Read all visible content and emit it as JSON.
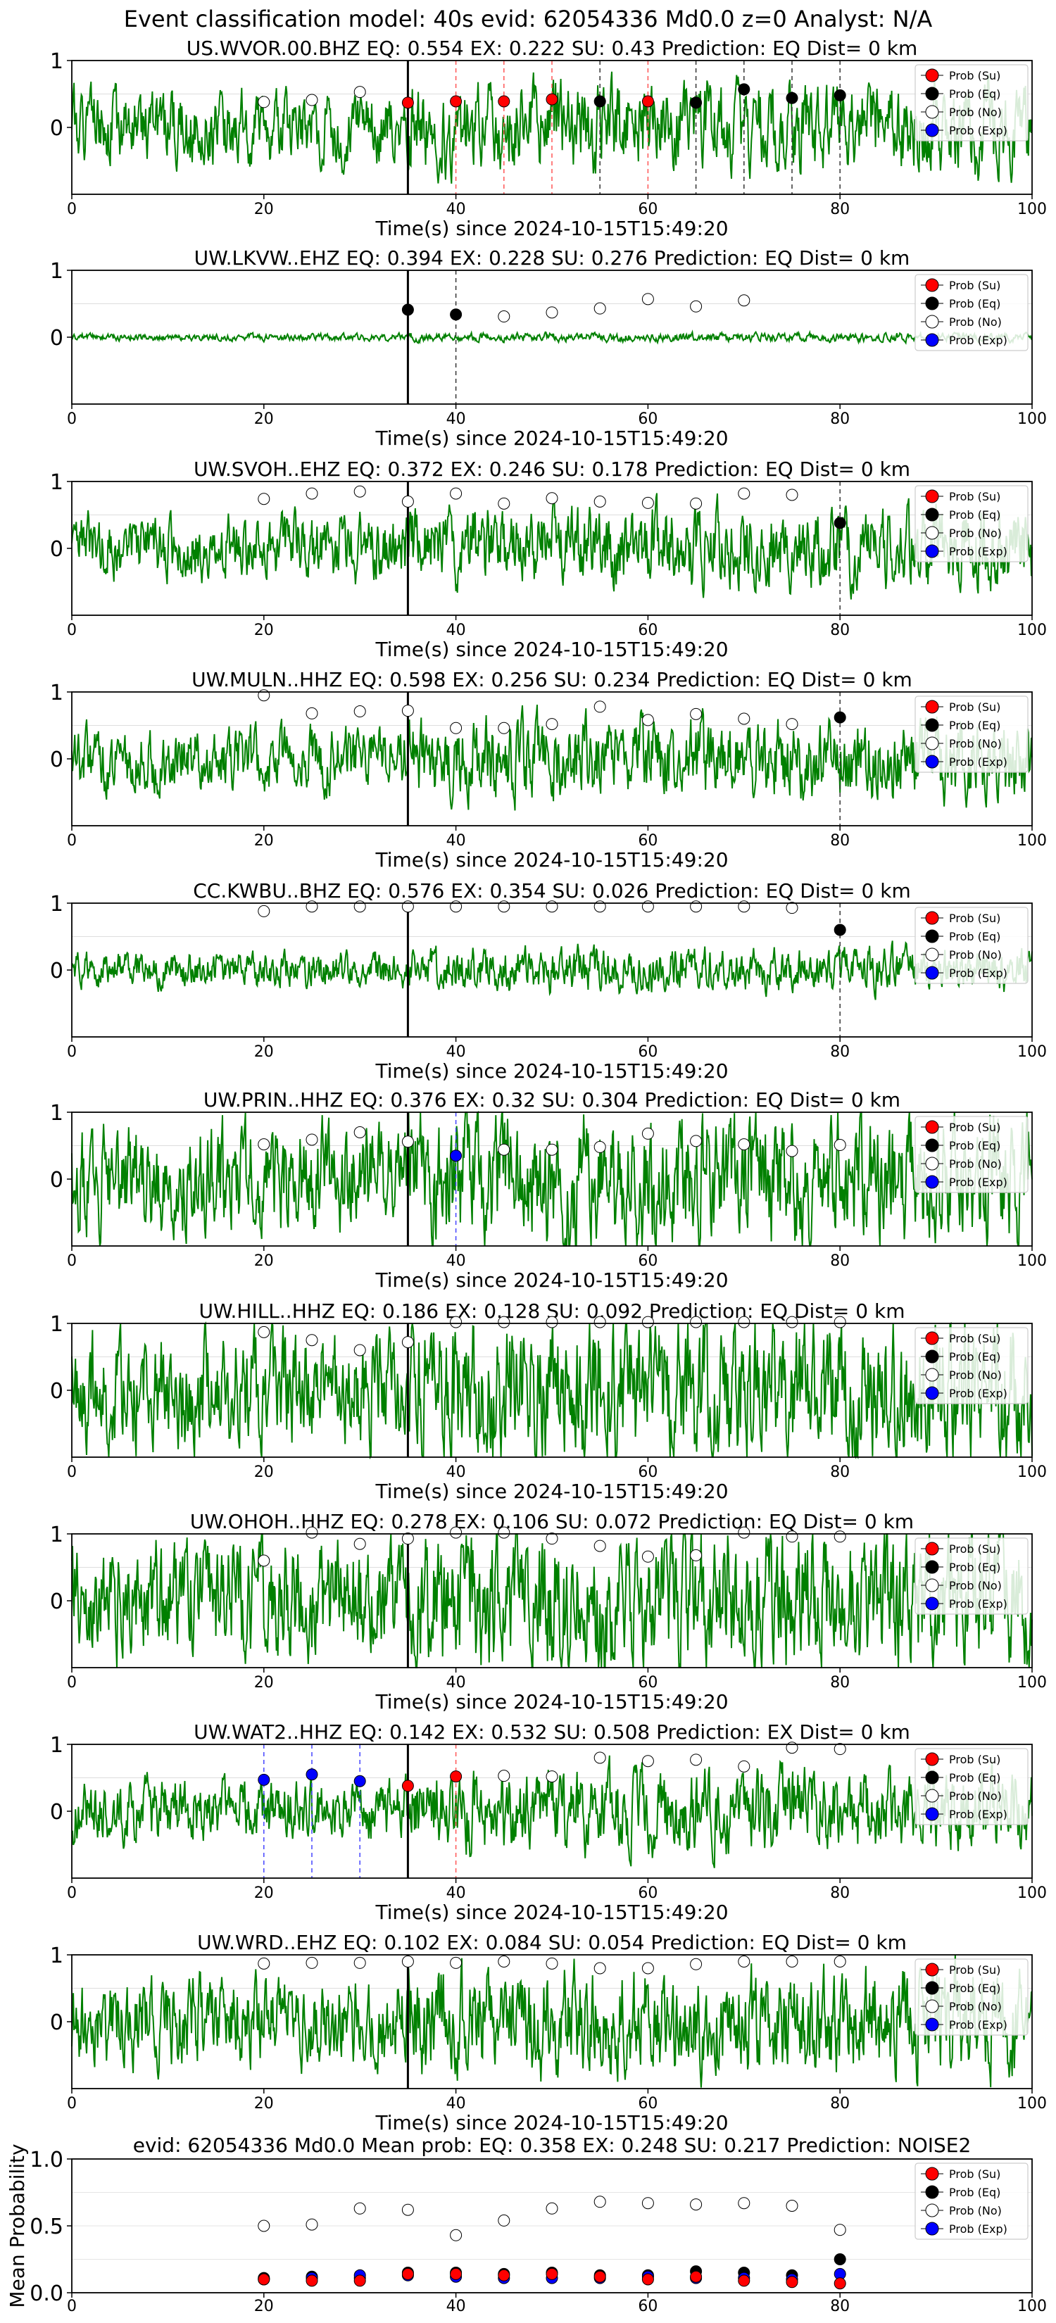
{
  "suptitle": "Event classification model: 40s evid: 62054336 Md0.0 z=0 Analyst: N/A",
  "colors": {
    "su": "#ff0000",
    "eq": "#000000",
    "no": "#ffffff",
    "exp": "#0000ff",
    "trace": "#008000"
  },
  "legend": {
    "su": "Prob (Su)",
    "eq": "Prob (Eq)",
    "no": "Prob (No)",
    "exp": "Prob (Exp)"
  },
  "xticks": [
    "0",
    "20",
    "40",
    "60",
    "80",
    "100"
  ],
  "xlabel": "Time(s) since 2024-10-15T15:49:20",
  "chart_data": [
    {
      "type": "scatter",
      "title": "US.WVOR.00.BHZ    EQ: 0.554  EX: 0.222  SU: 0.43   Prediction: EQ    Dist= 0 km",
      "xlabel": "Time(s) since 2024-10-15T15:49:20",
      "xlim": [
        0,
        100
      ],
      "ylim": [
        -1,
        1
      ],
      "yticks": [
        "0",
        "1"
      ],
      "amp": 0.5,
      "seed": 1,
      "p_line": 35,
      "points": [
        [
          20,
          0.38,
          "no"
        ],
        [
          25,
          0.41,
          "no"
        ],
        [
          30,
          0.53,
          "no"
        ],
        [
          35,
          0.37,
          "su"
        ],
        [
          40,
          0.39,
          "su"
        ],
        [
          45,
          0.39,
          "su"
        ],
        [
          50,
          0.42,
          "su"
        ],
        [
          55,
          0.39,
          "eq"
        ],
        [
          60,
          0.39,
          "su"
        ],
        [
          65,
          0.37,
          "eq"
        ],
        [
          70,
          0.57,
          "eq"
        ],
        [
          75,
          0.44,
          "eq"
        ],
        [
          80,
          0.48,
          "eq"
        ]
      ],
      "vlines": [
        [
          40,
          "su"
        ],
        [
          45,
          "su"
        ],
        [
          50,
          "su"
        ],
        [
          55,
          "eq"
        ],
        [
          60,
          "su"
        ],
        [
          65,
          "eq"
        ],
        [
          70,
          "eq"
        ],
        [
          75,
          "eq"
        ],
        [
          80,
          "eq"
        ]
      ]
    },
    {
      "type": "scatter",
      "title": "UW.LKVW..EHZ   EQ: 0.394  EX: 0.228  SU: 0.276   Prediction: EQ    Dist= 0 km",
      "xlabel": "Time(s) since 2024-10-15T15:49:20",
      "xlim": [
        0,
        100
      ],
      "ylim": [
        -1,
        1
      ],
      "yticks": [
        "0",
        "1"
      ],
      "amp": 0.05,
      "seed": 2,
      "p_line": 35,
      "points": [
        [
          35,
          0.41,
          "eq"
        ],
        [
          40,
          0.34,
          "eq"
        ],
        [
          45,
          0.31,
          "no"
        ],
        [
          50,
          0.37,
          "no"
        ],
        [
          55,
          0.43,
          "no"
        ],
        [
          60,
          0.57,
          "no"
        ],
        [
          65,
          0.46,
          "no"
        ],
        [
          70,
          0.55,
          "no"
        ]
      ],
      "vlines": [
        [
          40,
          "eq"
        ]
      ]
    },
    {
      "type": "scatter",
      "title": "UW.SVOH..EHZ   EQ: 0.372  EX: 0.246  SU: 0.178   Prediction: EQ    Dist= 0 km",
      "xlabel": "Time(s) since 2024-10-15T15:49:20",
      "xlim": [
        0,
        100
      ],
      "ylim": [
        -1,
        1
      ],
      "yticks": [
        "0",
        "1"
      ],
      "amp": 0.45,
      "seed": 3,
      "p_line": 35,
      "points": [
        [
          20,
          0.74,
          "no"
        ],
        [
          25,
          0.82,
          "no"
        ],
        [
          30,
          0.85,
          "no"
        ],
        [
          35,
          0.7,
          "no"
        ],
        [
          40,
          0.82,
          "no"
        ],
        [
          45,
          0.67,
          "no"
        ],
        [
          50,
          0.75,
          "no"
        ],
        [
          55,
          0.7,
          "no"
        ],
        [
          60,
          0.68,
          "no"
        ],
        [
          65,
          0.67,
          "no"
        ],
        [
          70,
          0.82,
          "no"
        ],
        [
          75,
          0.8,
          "no"
        ],
        [
          80,
          0.38,
          "eq"
        ]
      ],
      "vlines": [
        [
          80,
          "eq"
        ]
      ]
    },
    {
      "type": "scatter",
      "title": "UW.MULN..HHZ   EQ: 0.598  EX: 0.256  SU: 0.234   Prediction: EQ    Dist= 0 km",
      "xlabel": "Time(s) since 2024-10-15T15:49:20",
      "xlim": [
        0,
        100
      ],
      "ylim": [
        -1,
        1
      ],
      "yticks": [
        "0",
        "1"
      ],
      "amp": 0.45,
      "seed": 4,
      "p_line": 35,
      "points": [
        [
          20,
          0.95,
          "no"
        ],
        [
          25,
          0.68,
          "no"
        ],
        [
          30,
          0.71,
          "no"
        ],
        [
          35,
          0.72,
          "no"
        ],
        [
          40,
          0.46,
          "no"
        ],
        [
          45,
          0.46,
          "no"
        ],
        [
          50,
          0.52,
          "no"
        ],
        [
          55,
          0.78,
          "no"
        ],
        [
          60,
          0.58,
          "no"
        ],
        [
          65,
          0.67,
          "no"
        ],
        [
          70,
          0.6,
          "no"
        ],
        [
          75,
          0.52,
          "no"
        ],
        [
          80,
          0.62,
          "eq"
        ]
      ],
      "vlines": [
        [
          80,
          "eq"
        ]
      ]
    },
    {
      "type": "scatter",
      "title": "CC.KWBU..BHZ   EQ: 0.576  EX: 0.354  SU: 0.026   Prediction: EQ    Dist= 0 km",
      "xlabel": "Time(s) since 2024-10-15T15:49:20",
      "xlim": [
        0,
        100
      ],
      "ylim": [
        -1,
        1
      ],
      "yticks": [
        "0",
        "1"
      ],
      "amp": 0.25,
      "seed": 5,
      "p_line": 35,
      "points": [
        [
          20,
          0.88,
          "no"
        ],
        [
          25,
          0.95,
          "no"
        ],
        [
          30,
          0.95,
          "no"
        ],
        [
          35,
          0.95,
          "no"
        ],
        [
          40,
          0.95,
          "no"
        ],
        [
          45,
          0.95,
          "no"
        ],
        [
          50,
          0.95,
          "no"
        ],
        [
          55,
          0.95,
          "no"
        ],
        [
          60,
          0.95,
          "no"
        ],
        [
          65,
          0.95,
          "no"
        ],
        [
          70,
          0.95,
          "no"
        ],
        [
          75,
          0.93,
          "no"
        ],
        [
          80,
          0.6,
          "eq"
        ]
      ],
      "vlines": [
        [
          80,
          "eq"
        ]
      ]
    },
    {
      "type": "scatter",
      "title": "UW.PRIN..HHZ   EQ: 0.376  EX: 0.32  SU: 0.304   Prediction: EQ    Dist= 0 km",
      "xlabel": "Time(s) since 2024-10-15T15:49:20",
      "xlim": [
        0,
        100
      ],
      "ylim": [
        -1,
        1
      ],
      "yticks": [
        "0",
        "1"
      ],
      "amp": 0.75,
      "seed": 6,
      "p_line": 35,
      "points": [
        [
          20,
          0.52,
          "no"
        ],
        [
          25,
          0.59,
          "no"
        ],
        [
          30,
          0.7,
          "no"
        ],
        [
          35,
          0.56,
          "no"
        ],
        [
          40,
          0.35,
          "exp"
        ],
        [
          45,
          0.44,
          "no"
        ],
        [
          50,
          0.44,
          "no"
        ],
        [
          55,
          0.48,
          "no"
        ],
        [
          60,
          0.68,
          "no"
        ],
        [
          65,
          0.57,
          "no"
        ],
        [
          70,
          0.52,
          "no"
        ],
        [
          75,
          0.42,
          "no"
        ],
        [
          80,
          0.51,
          "no"
        ]
      ],
      "vlines": [
        [
          40,
          "exp"
        ]
      ]
    },
    {
      "type": "scatter",
      "title": "UW.HILL..HHZ   EQ: 0.186  EX: 0.128  SU: 0.092   Prediction: EQ    Dist= 0 km",
      "xlabel": "Time(s) since 2024-10-15T15:49:20",
      "xlim": [
        0,
        100
      ],
      "ylim": [
        -1,
        1
      ],
      "yticks": [
        "0",
        "1"
      ],
      "amp": 0.8,
      "seed": 7,
      "p_line": 35,
      "points": [
        [
          20,
          0.87,
          "no"
        ],
        [
          25,
          0.75,
          "no"
        ],
        [
          30,
          0.6,
          "no"
        ],
        [
          35,
          0.72,
          "no"
        ],
        [
          40,
          1.02,
          "no"
        ],
        [
          45,
          1.02,
          "no"
        ],
        [
          50,
          1.02,
          "no"
        ],
        [
          55,
          1.02,
          "no"
        ],
        [
          60,
          1.02,
          "no"
        ],
        [
          65,
          1.02,
          "no"
        ],
        [
          70,
          1.02,
          "no"
        ],
        [
          75,
          1.02,
          "no"
        ],
        [
          80,
          1.02,
          "no"
        ]
      ],
      "vlines": []
    },
    {
      "type": "scatter",
      "title": "UW.OHOH..HHZ   EQ: 0.278  EX: 0.106  SU: 0.072   Prediction: EQ    Dist= 0 km",
      "xlabel": "Time(s) since 2024-10-15T15:49:20",
      "xlim": [
        0,
        100
      ],
      "ylim": [
        -1,
        1
      ],
      "yticks": [
        "0",
        "1"
      ],
      "amp": 0.8,
      "seed": 8,
      "p_line": 35,
      "points": [
        [
          20,
          0.6,
          "no"
        ],
        [
          25,
          1.02,
          "no"
        ],
        [
          30,
          0.85,
          "no"
        ],
        [
          35,
          0.93,
          "no"
        ],
        [
          40,
          1.02,
          "no"
        ],
        [
          45,
          1.02,
          "no"
        ],
        [
          50,
          0.93,
          "no"
        ],
        [
          55,
          0.82,
          "no"
        ],
        [
          60,
          0.66,
          "no"
        ],
        [
          65,
          0.68,
          "no"
        ],
        [
          70,
          1.02,
          "no"
        ],
        [
          75,
          0.96,
          "no"
        ],
        [
          80,
          0.96,
          "no"
        ]
      ],
      "vlines": []
    },
    {
      "type": "scatter",
      "title": "UW.WAT2..HHZ   EQ: 0.142  EX: 0.532  SU: 0.508   Prediction: EX    Dist= 0 km",
      "xlabel": "Time(s) since 2024-10-15T15:49:20",
      "xlim": [
        0,
        100
      ],
      "ylim": [
        -1,
        1
      ],
      "yticks": [
        "0",
        "1"
      ],
      "amp": 0.45,
      "seed": 9,
      "p_line": 35,
      "points": [
        [
          20,
          0.47,
          "exp"
        ],
        [
          25,
          0.55,
          "exp"
        ],
        [
          30,
          0.45,
          "exp"
        ],
        [
          35,
          0.38,
          "su"
        ],
        [
          40,
          0.52,
          "su"
        ],
        [
          45,
          0.53,
          "no"
        ],
        [
          50,
          0.52,
          "no"
        ],
        [
          55,
          0.8,
          "no"
        ],
        [
          60,
          0.75,
          "no"
        ],
        [
          65,
          0.77,
          "no"
        ],
        [
          70,
          0.67,
          "no"
        ],
        [
          75,
          0.95,
          "no"
        ],
        [
          80,
          0.93,
          "no"
        ]
      ],
      "vlines": [
        [
          20,
          "exp"
        ],
        [
          25,
          "exp"
        ],
        [
          30,
          "exp"
        ],
        [
          40,
          "su"
        ]
      ]
    },
    {
      "type": "scatter",
      "title": "UW.WRD..EHZ   EQ: 0.102  EX: 0.084  SU: 0.054   Prediction: EQ    Dist= 0 km",
      "xlabel": "Time(s) since 2024-10-15T15:49:20",
      "xlim": [
        0,
        100
      ],
      "ylim": [
        -1,
        1
      ],
      "yticks": [
        "0",
        "1"
      ],
      "amp": 0.6,
      "seed": 10,
      "p_line": 35,
      "points": [
        [
          20,
          0.87,
          "no"
        ],
        [
          25,
          0.88,
          "no"
        ],
        [
          30,
          0.88,
          "no"
        ],
        [
          35,
          0.9,
          "no"
        ],
        [
          40,
          0.88,
          "no"
        ],
        [
          45,
          0.9,
          "no"
        ],
        [
          50,
          0.87,
          "no"
        ],
        [
          55,
          0.8,
          "no"
        ],
        [
          60,
          0.8,
          "no"
        ],
        [
          65,
          0.86,
          "no"
        ],
        [
          70,
          0.9,
          "no"
        ],
        [
          75,
          0.9,
          "no"
        ],
        [
          80,
          0.9,
          "no"
        ]
      ],
      "vlines": []
    },
    {
      "type": "scatter",
      "title": "evid: 62054336  Md0.0   Mean prob:   EQ: 0.358  EX: 0.248  SU: 0.217   Prediction: NOISE2",
      "xlabel": "",
      "ylabel": "Mean Probability",
      "xlim": [
        0,
        100
      ],
      "ylim": [
        0,
        1
      ],
      "yticks": [
        "0.0",
        "0.5",
        "1.0"
      ],
      "mean": true,
      "series": [
        {
          "name": "Prob (No)",
          "key": "no",
          "x": [
            20,
            25,
            30,
            35,
            40,
            45,
            50,
            55,
            60,
            65,
            70,
            75,
            80
          ],
          "y": [
            0.5,
            0.51,
            0.63,
            0.62,
            0.43,
            0.54,
            0.63,
            0.68,
            0.67,
            0.66,
            0.67,
            0.65,
            0.47
          ]
        },
        {
          "name": "Prob (Eq)",
          "key": "eq",
          "x": [
            20,
            25,
            30,
            35,
            40,
            45,
            50,
            55,
            60,
            65,
            70,
            75,
            80
          ],
          "y": [
            0.11,
            0.12,
            0.11,
            0.15,
            0.15,
            0.14,
            0.15,
            0.13,
            0.13,
            0.16,
            0.15,
            0.13,
            0.25
          ]
        },
        {
          "name": "Prob (Exp)",
          "key": "exp",
          "x": [
            20,
            25,
            30,
            35,
            40,
            45,
            50,
            55,
            60,
            65,
            70,
            75,
            80
          ],
          "y": [
            0.1,
            0.11,
            0.13,
            0.13,
            0.12,
            0.11,
            0.11,
            0.11,
            0.12,
            0.11,
            0.11,
            0.1,
            0.14
          ]
        },
        {
          "name": "Prob (Su)",
          "key": "su",
          "x": [
            20,
            25,
            30,
            35,
            40,
            45,
            50,
            55,
            60,
            65,
            70,
            75,
            80
          ],
          "y": [
            0.1,
            0.09,
            0.09,
            0.14,
            0.14,
            0.13,
            0.14,
            0.12,
            0.1,
            0.12,
            0.09,
            0.08,
            0.07
          ]
        }
      ]
    }
  ]
}
